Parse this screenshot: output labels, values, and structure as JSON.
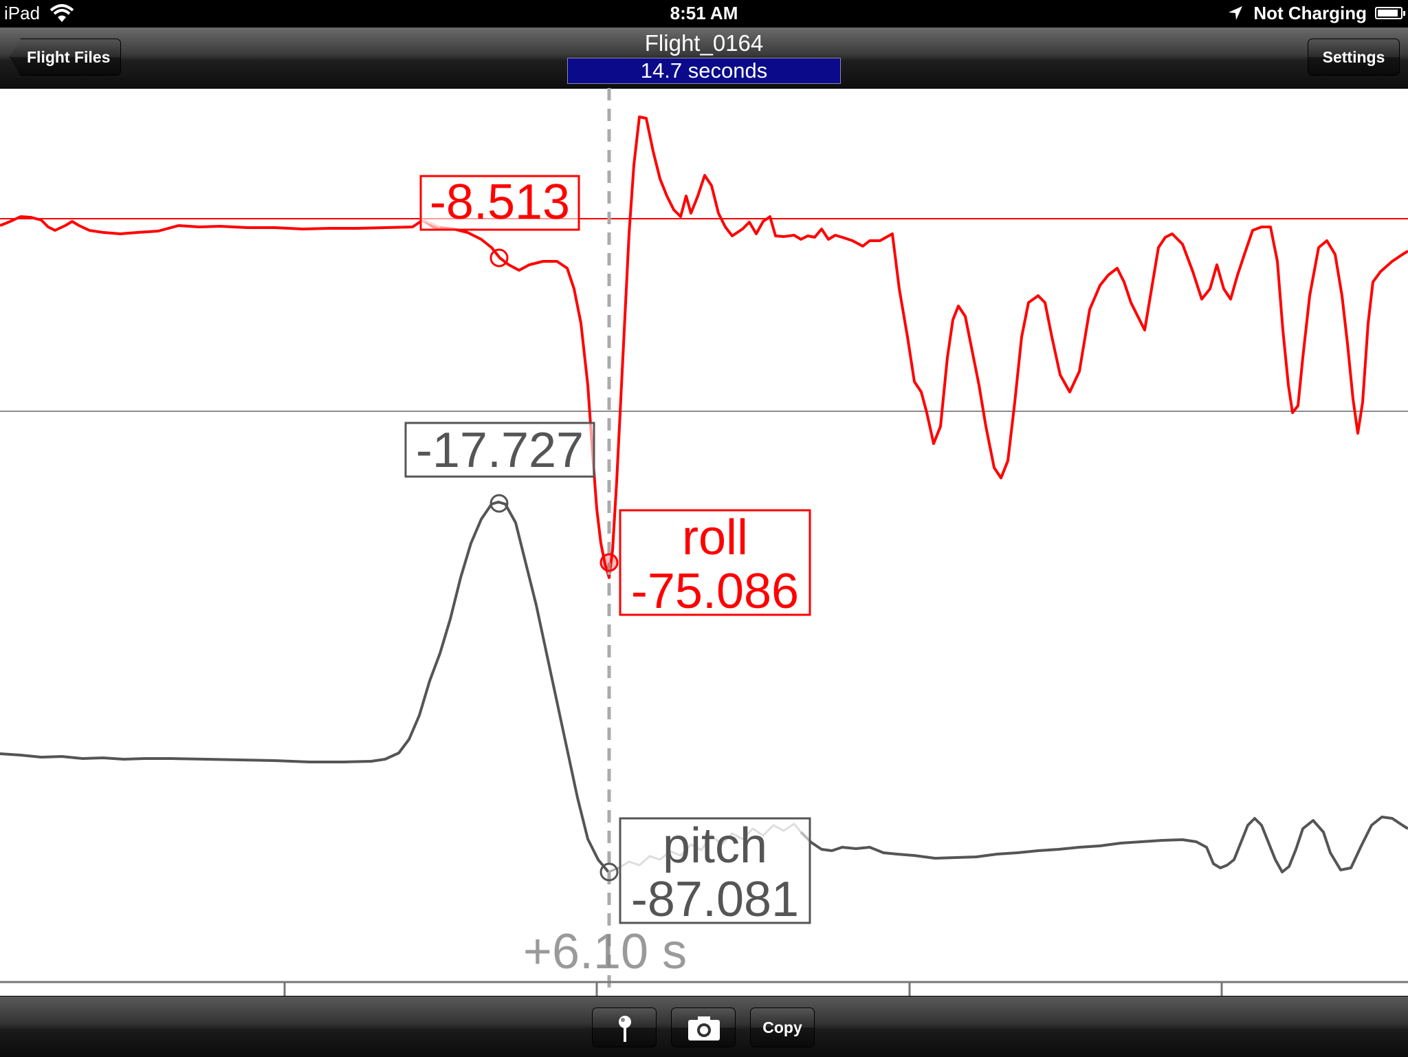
{
  "status_bar": {
    "device": "iPad",
    "time": "8:51 AM",
    "charging": "Not Charging",
    "battery_level": 0.9
  },
  "nav": {
    "back_label": "Flight Files",
    "title": "Flight_0164",
    "duration": "14.7 seconds",
    "settings_label": "Settings"
  },
  "toolbar": {
    "copy_label": "Copy"
  },
  "chart_data": {
    "type": "line",
    "cursor_label": "+6.10 s",
    "series": [
      {
        "name": "roll",
        "color": "#ff0000",
        "cursor_value": "-75.086",
        "marker_value": "-8.513",
        "reference_value": -8.513
      },
      {
        "name": "pitch",
        "color": "#555555",
        "cursor_value": "-87.081",
        "marker_value": "-17.727"
      }
    ]
  }
}
